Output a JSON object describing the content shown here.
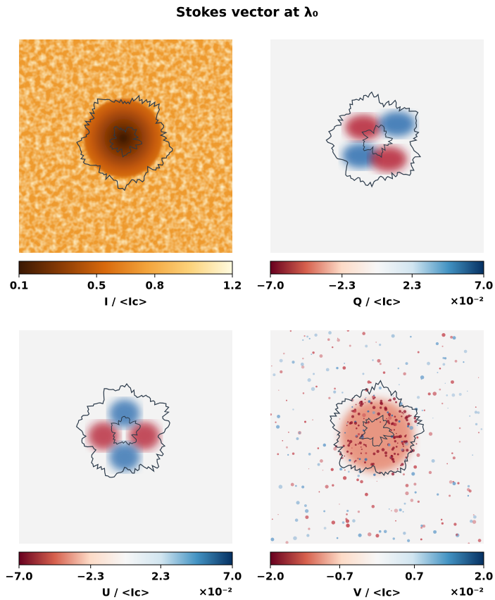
{
  "title": "Stokes vector at λ₀",
  "chart_data": [
    {
      "type": "image",
      "colorbar_label": "I / <Ic>",
      "clim": [
        0.1,
        1.2
      ],
      "cticks": [
        0.1,
        0.5,
        0.8,
        1.2
      ],
      "colormap": [
        "#3a1804",
        "#8b3c05",
        "#d8690c",
        "#f3a43c",
        "#fcd27a",
        "#fffbe0"
      ]
    },
    {
      "type": "image",
      "colorbar_label": "Q / <Ic>",
      "clim": [
        -7,
        7
      ],
      "cticks": [
        {
          "value": -7,
          "label": "−7.0"
        },
        {
          "value": -2.3,
          "label": "−2.3"
        },
        2.3,
        {
          "value": 7,
          "label": "7.0"
        }
      ],
      "scale_label": "×10⁻²",
      "colormap": [
        "#67001f",
        "#d6604d",
        "#fddbc7",
        "#f7f7f7",
        "#d1e5f0",
        "#4393c3",
        "#053061"
      ]
    },
    {
      "type": "image",
      "colorbar_label": "U / <Ic>",
      "clim": [
        -7,
        7
      ],
      "cticks": [
        {
          "value": -7,
          "label": "−7.0"
        },
        {
          "value": -2.3,
          "label": "−2.3"
        },
        2.3,
        {
          "value": 7,
          "label": "7.0"
        }
      ],
      "scale_label": "×10⁻²",
      "colormap": [
        "#67001f",
        "#d6604d",
        "#fddbc7",
        "#f7f7f7",
        "#d1e5f0",
        "#4393c3",
        "#053061"
      ]
    },
    {
      "type": "image",
      "colorbar_label": "V / <Ic>",
      "clim": [
        -2,
        2
      ],
      "cticks": [
        {
          "value": -2,
          "label": "−2.0"
        },
        {
          "value": -0.7,
          "label": "−0.7"
        },
        0.7,
        {
          "value": 2,
          "label": "2.0"
        }
      ],
      "scale_label": "×10⁻²",
      "colormap": [
        "#67001f",
        "#d6604d",
        "#fddbc7",
        "#f7f7f7",
        "#d1e5f0",
        "#4393c3",
        "#053061"
      ]
    }
  ]
}
